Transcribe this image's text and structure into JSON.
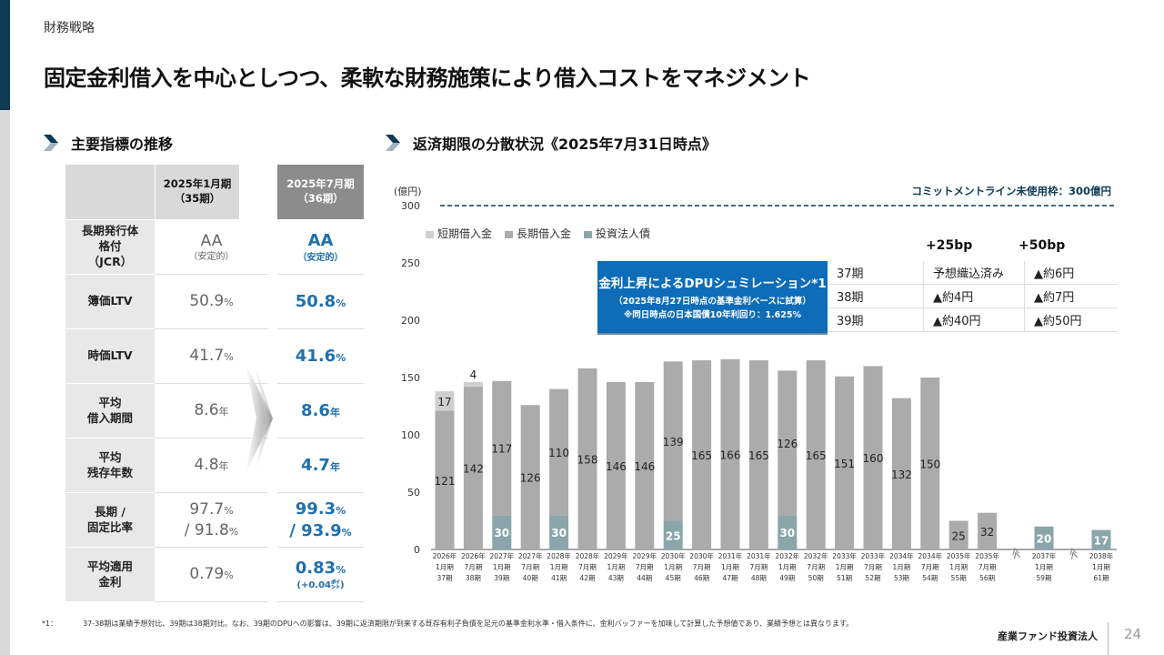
{
  "header": {
    "section_label": "財務戦略",
    "title": "固定金利借入を中心としつつ、柔軟な財務施策により借入コストをマネジメント"
  },
  "left_section": {
    "heading": "主要指標の推移",
    "columns": {
      "prev": {
        "line1": "2025年1月期",
        "line2": "（35期）"
      },
      "cur": {
        "line1": "2025年7月期",
        "line2": "（36期）"
      }
    },
    "rows": [
      {
        "label": [
          "長期発行体",
          "格付",
          "（JCR）"
        ],
        "prev": {
          "value": "AA",
          "unit": "",
          "note": "（安定的）"
        },
        "cur": {
          "value": "AA",
          "unit": "",
          "note": "（安定的）"
        }
      },
      {
        "label": [
          "簿価LTV"
        ],
        "prev": {
          "value": "50.9",
          "unit": "%"
        },
        "cur": {
          "value": "50.8",
          "unit": "%"
        }
      },
      {
        "label": [
          "時価LTV"
        ],
        "prev": {
          "value": "41.7",
          "unit": "%"
        },
        "cur": {
          "value": "41.6",
          "unit": "%"
        }
      },
      {
        "label": [
          "平均",
          "借入期間"
        ],
        "prev": {
          "value": "8.6",
          "unit": "年"
        },
        "cur": {
          "value": "8.6",
          "unit": "年"
        }
      },
      {
        "label": [
          "平均",
          "残存年数"
        ],
        "prev": {
          "value": "4.8",
          "unit": "年"
        },
        "cur": {
          "value": "4.7",
          "unit": "年"
        }
      },
      {
        "label": [
          "長期 /",
          "固定比率"
        ],
        "prev": {
          "value": "97.7",
          "unit": "%",
          "value2": "/ 91.8",
          "unit2": "%"
        },
        "cur": {
          "value": "99.3",
          "unit": "%",
          "value2": "/ 93.9",
          "unit2": "%"
        }
      },
      {
        "label": [
          "平均適用",
          "金利"
        ],
        "prev": {
          "value": "0.79",
          "unit": "%"
        },
        "cur": {
          "value": "0.83",
          "unit": "%",
          "note": "(+0.04㌽)"
        }
      }
    ]
  },
  "right_section": {
    "heading": "返済期限の分散状況《2025年7月31日時点》",
    "commitment_line": "コミットメントライン未使用枠：300億円",
    "simulation": {
      "title": "金利上昇によるDPUシュミレーション*1",
      "sub1": "（2025年8月27日時点の基準金利ベースに試算）",
      "sub2": "※同日時点の日本国債10年利回り：1.625%",
      "headers": [
        "+25bp",
        "+50bp"
      ],
      "rows": [
        {
          "period": "37期",
          "bp25": "予想織込済み",
          "bp50": "▲約6円"
        },
        {
          "period": "38期",
          "bp25": "▲約4円",
          "bp50": "▲約7円"
        },
        {
          "period": "39期",
          "bp25": "▲約40円",
          "bp50": "▲約50円"
        }
      ]
    }
  },
  "chart_data": {
    "type": "bar",
    "stacked": true,
    "title": "返済期限の分散状況《2025年7月31日時点》",
    "ylabel": "(億円)",
    "ylim": [
      0,
      300
    ],
    "yticks": [
      0,
      50,
      100,
      150,
      200,
      250,
      300
    ],
    "reference_line": {
      "value": 300,
      "label": "コミットメントライン未使用枠：300億円",
      "style": "dashed"
    },
    "legend_position": "top-left",
    "categories": [
      {
        "year": "2026年",
        "month": "1月期",
        "period": "37期"
      },
      {
        "year": "2026年",
        "month": "7月期",
        "period": "38期"
      },
      {
        "year": "2027年",
        "month": "1月期",
        "period": "39期"
      },
      {
        "year": "2027年",
        "month": "7月期",
        "period": "40期"
      },
      {
        "year": "2028年",
        "month": "1月期",
        "period": "41期"
      },
      {
        "year": "2028年",
        "month": "7月期",
        "period": "42期"
      },
      {
        "year": "2029年",
        "month": "1月期",
        "period": "43期"
      },
      {
        "year": "2029年",
        "month": "7月期",
        "period": "44期"
      },
      {
        "year": "2030年",
        "month": "1月期",
        "period": "45期"
      },
      {
        "year": "2030年",
        "month": "7月期",
        "period": "46期"
      },
      {
        "year": "2031年",
        "month": "1月期",
        "period": "47期"
      },
      {
        "year": "2031年",
        "month": "7月期",
        "period": "48期"
      },
      {
        "year": "2032年",
        "month": "1月期",
        "period": "49期"
      },
      {
        "year": "2032年",
        "month": "7月期",
        "period": "50期"
      },
      {
        "year": "2033年",
        "month": "1月期",
        "period": "51期"
      },
      {
        "year": "2033年",
        "month": "7月期",
        "period": "52期"
      },
      {
        "year": "2034年",
        "month": "1月期",
        "period": "53期"
      },
      {
        "year": "2034年",
        "month": "7月期",
        "period": "54期"
      },
      {
        "year": "2035年",
        "month": "1月期",
        "period": "55期"
      },
      {
        "year": "2035年",
        "month": "7月期",
        "period": "56期"
      },
      {
        "year": "2037年",
        "month": "1月期",
        "period": "59期"
      },
      {
        "year": "2038年",
        "month": "1月期",
        "period": "61期"
      }
    ],
    "axis_breaks_before": [
      20,
      21
    ],
    "series": [
      {
        "name": "投資法人債",
        "color": "#8aa6ab",
        "values": [
          0,
          0,
          30,
          0,
          30,
          0,
          0,
          0,
          25,
          0,
          0,
          0,
          30,
          0,
          0,
          0,
          0,
          0,
          0,
          0,
          20,
          17
        ]
      },
      {
        "name": "長期借入金",
        "color": "#ababab",
        "values": [
          121,
          142,
          117,
          126,
          110,
          158,
          146,
          146,
          139,
          165,
          166,
          165,
          126,
          165,
          151,
          160,
          132,
          150,
          25,
          32,
          0,
          0
        ]
      },
      {
        "name": "短期借入金",
        "color": "#cfcfcf",
        "values": [
          17,
          4,
          0,
          0,
          0,
          0,
          0,
          0,
          0,
          0,
          0,
          0,
          0,
          0,
          0,
          0,
          0,
          0,
          0,
          0,
          0,
          0
        ]
      }
    ],
    "legend_order": [
      "短期借入金",
      "長期借入金",
      "投資法人債"
    ]
  },
  "footer": {
    "footnote_mark": "*1：",
    "footnote": "37-38期は業績予想対比、39期は38期対比。なお、39期のDPUへの影響は、39期に返済期限が到来する既存有利子負債を足元の基準金利水準・借入条件に、金利バッファーを加味して計算した予想値であり、業績予想とは異なります。",
    "company": "産業ファンド投資法人",
    "page": "24"
  }
}
